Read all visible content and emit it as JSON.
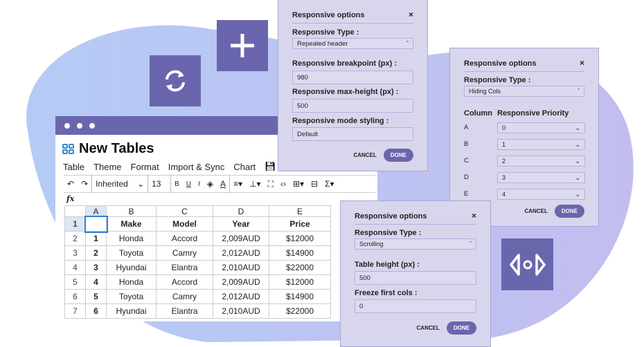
{
  "window": {
    "title": "New Tables",
    "menu": [
      "Table",
      "Theme",
      "Format",
      "Import & Sync",
      "Chart"
    ],
    "toolbar": {
      "font": "Inherited",
      "size": "13",
      "bold": "B",
      "underline": "U",
      "italic": "I",
      "text_color": "A",
      "sum": "Σ"
    },
    "fx": "fx"
  },
  "table": {
    "col_headers": [
      "A",
      "B",
      "C",
      "D",
      "E"
    ],
    "rows": [
      [
        "1",
        "",
        "Make",
        "Model",
        "Year",
        "Price"
      ],
      [
        "2",
        "1",
        "Honda",
        "Accord",
        "2,009AUD",
        "$12000"
      ],
      [
        "3",
        "2",
        "Toyota",
        "Camry",
        "2,012AUD",
        "$14900"
      ],
      [
        "4",
        "3",
        "Hyundai",
        "Elantra",
        "2,010AUD",
        "$22000"
      ],
      [
        "5",
        "4",
        "Honda",
        "Accord",
        "2,009AUD",
        "$12000"
      ],
      [
        "6",
        "5",
        "Toyota",
        "Camry",
        "2,012AUD",
        "$14900"
      ],
      [
        "7",
        "6",
        "Hyundai",
        "Elantra",
        "2,010AUD",
        "$22000"
      ]
    ]
  },
  "panel1": {
    "title": "Responsive options",
    "type_label": "Responsive Type :",
    "type_value": "Repeated header",
    "bp_label": "Responsive breakpoint (px) :",
    "bp_value": "980",
    "mh_label": "Responsive max-height (px) :",
    "mh_value": "500",
    "style_label": "Responsive mode styling :",
    "style_value": "Default",
    "cancel": "CANCEL",
    "done": "DONE"
  },
  "panel2": {
    "title": "Responsive options",
    "type_label": "Responsive Type :",
    "type_value": "Hiding Cols",
    "col_header": "Column",
    "prio_header": "Responsive Priority",
    "rows": [
      [
        "A",
        "0"
      ],
      [
        "B",
        "1"
      ],
      [
        "C",
        "2"
      ],
      [
        "D",
        "3"
      ],
      [
        "E",
        "4"
      ]
    ],
    "cancel": "CANCEL",
    "done": "DONE"
  },
  "panel3": {
    "title": "Responsive options",
    "type_label": "Responsive Type :",
    "type_value": "Scrolling",
    "height_label": "Table height (px) :",
    "height_value": "500",
    "freeze_label": "Freeze first cols :",
    "freeze_value": "0",
    "cancel": "CANCEL",
    "done": "DONE"
  },
  "colors": {
    "accent": "#6a66ad",
    "panel": "#d8d6ec"
  }
}
